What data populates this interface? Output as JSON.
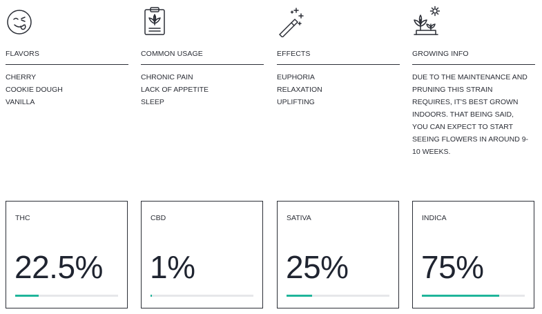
{
  "colors": {
    "text": "#2a2d35",
    "progress_fill": "#1fb59a",
    "progress_track": "#e6e7ea"
  },
  "info_columns": [
    {
      "icon": "smiley-tongue-icon",
      "title": "FLAVORS",
      "items": [
        "CHERRY",
        "COOKIE DOUGH",
        "VANILLA"
      ]
    },
    {
      "icon": "clipboard-leaf-icon",
      "title": "COMMON USAGE",
      "items": [
        "CHRONIC PAIN",
        "LACK OF APPETITE",
        "SLEEP"
      ]
    },
    {
      "icon": "magic-wand-icon",
      "title": "EFFECTS",
      "items": [
        "EUPHORIA",
        "RELAXATION",
        "UPLIFTING"
      ]
    },
    {
      "icon": "plant-sun-icon",
      "title": "GROWING INFO",
      "text": "DUE TO THE MAINTENANCE AND PRUNING THIS STRAIN REQUIRES, IT'S BEST GROWN INDOORS. THAT BEING SAID, YOU CAN EXPECT TO START SEEING FLOWERS IN AROUND 9-10 WEEKS."
    }
  ],
  "stats": [
    {
      "label": "THC",
      "value": "22.5%",
      "progress": 0.225
    },
    {
      "label": "CBD",
      "value": "1%",
      "progress": 0.01
    },
    {
      "label": "SATIVA",
      "value": "25%",
      "progress": 0.25
    },
    {
      "label": "INDICA",
      "value": "75%",
      "progress": 0.75
    }
  ]
}
